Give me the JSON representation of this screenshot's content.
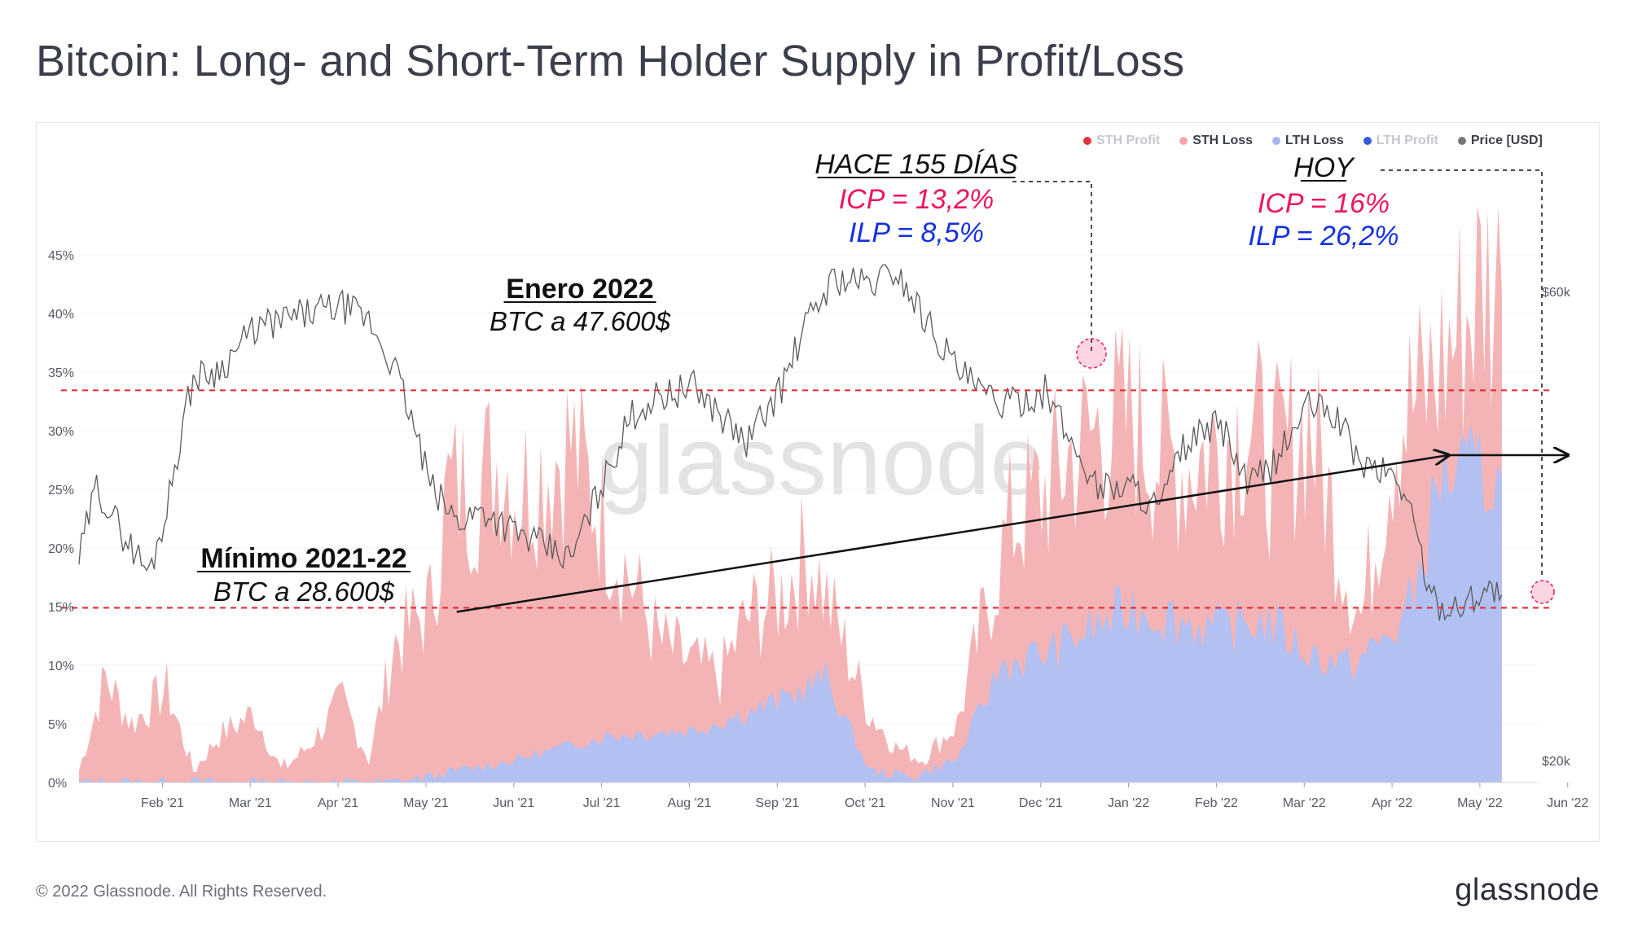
{
  "title": "Bitcoin: Long- and Short-Term Holder Supply in Profit/Loss",
  "footer": {
    "copyright": "© 2022 Glassnode. All Rights Reserved.",
    "logo": "glassnode",
    "watermark": "glassnode"
  },
  "legend": [
    {
      "label": "STH Profit",
      "color": "#e0343f",
      "faded": true
    },
    {
      "label": "STH Loss",
      "color": "#f4a7a8",
      "faded": false
    },
    {
      "label": "LTH Loss",
      "color": "#a9b6f0",
      "faded": false
    },
    {
      "label": "LTH Profit",
      "color": "#3a5be0",
      "faded": true
    },
    {
      "label": "Price [USD]",
      "color": "#777777",
      "faded": false
    }
  ],
  "colors": {
    "sth_loss": "#f4b4b5",
    "lth_loss": "#b3c0f2",
    "price": "#5a5a5a",
    "ref_line": "#e4262f",
    "annot_red": "#f0145a",
    "annot_blue": "#1530e0",
    "dashed_black": "#111111"
  },
  "annotations": {
    "enero_title": "Enero 2022",
    "enero_sub": "BTC a 47.600$",
    "minimo_title": "Mínimo 2021-22",
    "minimo_sub": "BTC a 28.600$",
    "hace_title": "HACE 155 DÍAS",
    "hace_icp": "ICP = 13,2%",
    "hace_ilp": "ILP = 8,5%",
    "hoy_title": "HOY",
    "hoy_icp": "ICP = 16%",
    "hoy_ilp": "ILP = 26,2%"
  },
  "chart_data": {
    "type": "area",
    "x_ticks": [
      "Feb '21",
      "Mar '21",
      "Apr '21",
      "May '21",
      "Jun '21",
      "Jul '21",
      "Aug '21",
      "Sep '21",
      "Oct '21",
      "Nov '21",
      "Dec '21",
      "Jan '22",
      "Feb '22",
      "Mar '22",
      "Apr '22",
      "May '22",
      "Jun '22"
    ],
    "y_left_ticks": [
      "0%",
      "5%",
      "10%",
      "15%",
      "20%",
      "25%",
      "30%",
      "35%",
      "40%",
      "45%"
    ],
    "y_left_range": [
      0,
      50
    ],
    "y_right_ticks": [
      "$20k",
      "$60k"
    ],
    "y_right_scale": "log",
    "y_right_range": [
      19000,
      75000
    ],
    "series": [
      {
        "name": "STH Loss",
        "unit": "%",
        "x": [
          0,
          0.3,
          0.6,
          1,
          1.3,
          1.6,
          2,
          2.3,
          2.6,
          3,
          3.3,
          3.6,
          4,
          4.2,
          4.5,
          4.8,
          5,
          5.3,
          5.6,
          6,
          6.3,
          6.6,
          7,
          7.3,
          7.6,
          8,
          8.3,
          8.6,
          9,
          9.3,
          9.6,
          10,
          10.3,
          10.6,
          11,
          11.3,
          11.6,
          12,
          12.3,
          12.6,
          13,
          13.3,
          13.6,
          14,
          14.3,
          14.6,
          15,
          15.3,
          15.6,
          16,
          16.2
        ],
        "values": [
          1,
          9,
          5,
          8,
          1,
          4,
          6,
          1,
          3,
          7,
          2,
          12,
          15,
          25,
          25,
          28,
          25,
          27,
          29,
          22,
          17,
          12,
          10,
          9,
          14,
          16,
          20,
          14,
          6,
          3,
          2,
          5,
          14,
          22,
          25,
          28,
          30,
          31,
          28,
          27,
          29,
          31,
          27,
          31,
          22,
          14,
          31,
          33,
          37,
          43,
          42
        ]
      },
      {
        "name": "LTH Loss",
        "unit": "%",
        "x": [
          0,
          3.5,
          4,
          5,
          6,
          7,
          8,
          8.5,
          9,
          9.5,
          10,
          10.5,
          11,
          11.5,
          12,
          12.5,
          13,
          13.5,
          14,
          14.5,
          15,
          15.2,
          15.5,
          16,
          16.2
        ],
        "values": [
          0,
          0,
          0.5,
          2,
          4,
          4.5,
          7,
          9,
          1,
          0.5,
          2,
          10,
          11,
          13,
          15,
          14,
          13,
          14,
          11,
          10,
          13,
          16,
          26.2,
          26.2,
          26.2
        ]
      },
      {
        "name": "Price [USD]",
        "unit": "USD",
        "x": [
          0,
          0.2,
          0.5,
          0.8,
          1,
          1.3,
          1.6,
          2,
          2.3,
          2.6,
          3,
          3.3,
          3.6,
          4,
          4.3,
          4.6,
          5,
          5.3,
          5.6,
          6,
          6.3,
          6.6,
          7,
          7.3,
          7.6,
          8,
          8.3,
          8.6,
          9,
          9.3,
          9.6,
          10,
          10.3,
          10.6,
          11,
          11.3,
          11.6,
          12,
          12.3,
          12.6,
          13,
          13.3,
          13.6,
          14,
          14.3,
          14.6,
          15,
          15.2,
          15.4,
          15.7,
          16,
          16.2
        ],
        "values": [
          32000,
          38000,
          34000,
          31000,
          36000,
          49000,
          50000,
          55000,
          56000,
          57000,
          58000,
          56000,
          50000,
          38000,
          35000,
          36000,
          34000,
          33000,
          32000,
          39000,
          45000,
          47000,
          48000,
          45000,
          42000,
          48000,
          56000,
          62000,
          61000,
          63000,
          57000,
          50000,
          47000,
          46000,
          47600,
          42000,
          38000,
          38000,
          36000,
          42000,
          44000,
          38000,
          40000,
          46000,
          45000,
          40000,
          39000,
          35000,
          29000,
          28600,
          30000,
          29500
        ]
      }
    ],
    "reference_lines": [
      {
        "label": "Enero 2022",
        "value": 47600,
        "axis": "right"
      },
      {
        "label": "Mínimo 2021-22",
        "value": 28600,
        "axis": "right"
      }
    ],
    "trend_arrow": {
      "from": [
        4.3,
        47600
      ],
      "to": [
        15.5,
        40600
      ]
    },
    "grid": true,
    "legend_position": "top-right"
  }
}
